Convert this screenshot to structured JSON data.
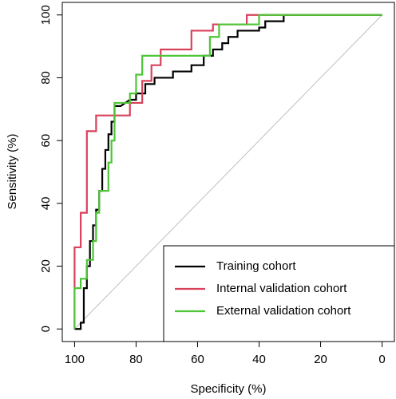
{
  "chart_data": {
    "type": "line",
    "xlabel": "Specificity (%)",
    "ylabel": "Sensitivity (%)",
    "xlim": [
      104,
      -4
    ],
    "ylim": [
      -4,
      104
    ],
    "xticks": [
      100,
      80,
      60,
      40,
      20,
      0
    ],
    "yticks": [
      0,
      20,
      40,
      60,
      80,
      100
    ],
    "legend": "bottomright",
    "diagonal": {
      "x": [
        100,
        0
      ],
      "y": [
        0,
        100
      ],
      "color": "#bebebe"
    },
    "series": [
      {
        "name": "Training cohort",
        "color": "#000000",
        "x": [
          100,
          98,
          98,
          97,
          97,
          96,
          96,
          95,
          95,
          94,
          94,
          93,
          93,
          92,
          92,
          91,
          91,
          90,
          90,
          89,
          89,
          88,
          88,
          87,
          87,
          85,
          82,
          80,
          80,
          77,
          77,
          74,
          74,
          68,
          68,
          62,
          62,
          58,
          58,
          55,
          55,
          52,
          52,
          50,
          50,
          47,
          47,
          40,
          40,
          38,
          38,
          32,
          32,
          0
        ],
        "values": [
          0,
          0,
          2,
          2,
          13,
          13,
          20,
          20,
          28,
          28,
          33,
          33,
          38,
          38,
          44,
          44,
          51,
          51,
          57,
          57,
          62,
          62,
          66,
          66,
          71,
          71,
          73,
          73,
          75,
          75,
          78,
          78,
          80,
          80,
          82,
          82,
          84,
          84,
          87,
          87,
          89,
          89,
          91,
          91,
          93,
          93,
          95,
          95,
          96,
          96,
          98,
          98,
          100,
          100
        ]
      },
      {
        "name": "Internal validation cohort",
        "color": "#d9415b",
        "x": [
          100,
          100,
          98,
          98,
          96,
          96,
          93,
          93,
          82,
          82,
          78,
          78,
          75,
          75,
          72,
          72,
          62,
          62,
          55,
          55,
          44,
          44,
          0
        ],
        "values": [
          0,
          26,
          26,
          37,
          37,
          63,
          63,
          68,
          68,
          72,
          72,
          79,
          79,
          84,
          84,
          89,
          89,
          95,
          95,
          97,
          97,
          100,
          100
        ]
      },
      {
        "name": "External validation cohort",
        "color": "#4dc536",
        "x": [
          100,
          100,
          98,
          98,
          96,
          96,
          94,
          94,
          93,
          93,
          92,
          92,
          89,
          89,
          88,
          88,
          87,
          87,
          82,
          82,
          80,
          80,
          78,
          78,
          56,
          56,
          53,
          53,
          40,
          40,
          0
        ],
        "values": [
          0,
          13,
          13,
          16,
          16,
          22,
          22,
          28,
          28,
          37,
          37,
          44,
          44,
          53,
          53,
          60,
          60,
          72,
          72,
          75,
          75,
          81,
          81,
          87,
          87,
          93,
          93,
          97,
          97,
          100,
          100
        ]
      }
    ]
  }
}
